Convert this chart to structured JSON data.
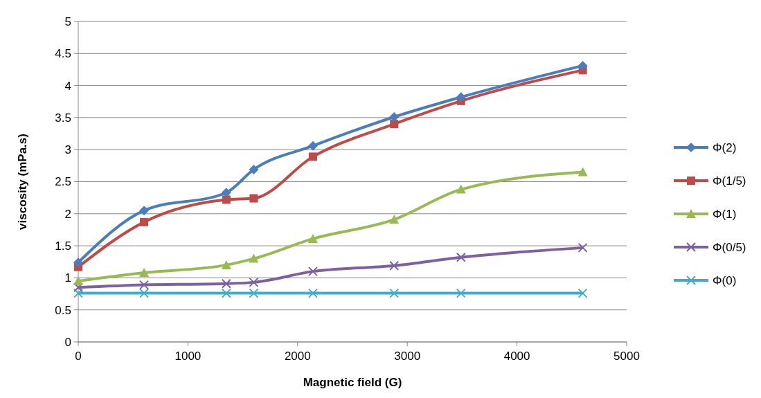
{
  "chart_data": {
    "type": "line",
    "xlabel": "Magnetic field  (G)",
    "ylabel": "viscosity (mPa.s)",
    "x": [
      0,
      600,
      1350,
      1600,
      2140,
      2880,
      3490,
      4600
    ],
    "xlim": [
      0,
      5000
    ],
    "xticks": [
      0,
      1000,
      2000,
      3000,
      4000,
      5000
    ],
    "ylim": [
      0,
      5
    ],
    "yticks": [
      0,
      0.5,
      1,
      1.5,
      2,
      2.5,
      3,
      3.5,
      4,
      4.5,
      5
    ],
    "grid": "y",
    "legend": "right",
    "line_style": "solid",
    "series": [
      {
        "name": "Φ(2)",
        "color": "#4a7ebb",
        "marker": "diamond",
        "values": [
          1.24,
          2.05,
          2.33,
          2.69,
          3.06,
          3.51,
          3.82,
          4.31
        ]
      },
      {
        "name": "Φ(1/5)",
        "color": "#be4b48",
        "marker": "square",
        "values": [
          1.17,
          1.87,
          2.22,
          2.24,
          2.89,
          3.4,
          3.76,
          4.24
        ]
      },
      {
        "name": "Φ(1)",
        "color": "#98b954",
        "marker": "triangle",
        "values": [
          0.95,
          1.08,
          1.2,
          1.3,
          1.61,
          1.91,
          2.38,
          2.65
        ]
      },
      {
        "name": "Φ(0/5)",
        "color": "#7d60a0",
        "marker": "cross",
        "values": [
          0.85,
          0.89,
          0.91,
          0.93,
          1.1,
          1.19,
          1.32,
          1.47
        ]
      },
      {
        "name": "Φ(0)",
        "color": "#46aac5",
        "marker": "cross",
        "values": [
          0.76,
          0.76,
          0.76,
          0.76,
          0.76,
          0.76,
          0.76,
          0.76
        ]
      }
    ]
  }
}
